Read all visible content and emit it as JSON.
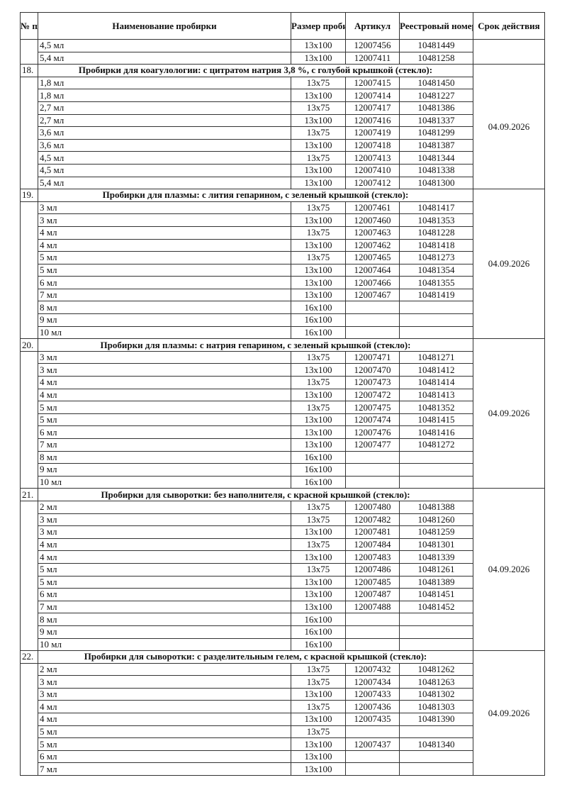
{
  "headers": {
    "num": "№ п/п",
    "name": "Наименование пробирки",
    "size": "Размер пробирки",
    "article": "Артикул",
    "registry": "Реестровый номер",
    "validity": "Срок действия"
  },
  "groups": [
    {
      "number": "",
      "title": "",
      "date": "",
      "items": [
        {
          "name": "4,5 мл",
          "size": "13x100",
          "article": "12007456",
          "registry": "10481449"
        },
        {
          "name": "5,4 мл",
          "size": "13x100",
          "article": "12007411",
          "registry": "10481258"
        }
      ]
    },
    {
      "number": "18.",
      "title": "Пробирки для коагулологии: с цитратом натрия 3,8 %, с голубой крышкой (стекло):",
      "date": "04.09.2026",
      "items": [
        {
          "name": "1,8 мл",
          "size": "13x75",
          "article": "12007415",
          "registry": "10481450"
        },
        {
          "name": "1,8 мл",
          "size": "13x100",
          "article": "12007414",
          "registry": "10481227"
        },
        {
          "name": "2,7 мл",
          "size": "13x75",
          "article": "12007417",
          "registry": "10481386"
        },
        {
          "name": "2,7 мл",
          "size": "13x100",
          "article": "12007416",
          "registry": "10481337"
        },
        {
          "name": "3,6 мл",
          "size": "13x75",
          "article": "12007419",
          "registry": "10481299"
        },
        {
          "name": "3,6 мл",
          "size": "13x100",
          "article": "12007418",
          "registry": "10481387"
        },
        {
          "name": "4,5 мл",
          "size": "13x75",
          "article": "12007413",
          "registry": "10481344"
        },
        {
          "name": "4,5 мл",
          "size": "13x100",
          "article": "12007410",
          "registry": "10481338"
        },
        {
          "name": "5,4 мл",
          "size": "13x100",
          "article": "12007412",
          "registry": "10481300"
        }
      ]
    },
    {
      "number": "19.",
      "title": "Пробирки для плазмы: с лития гепарином, с зеленый крышкой (стекло):",
      "date": "04.09.2026",
      "items": [
        {
          "name": "3 мл",
          "size": "13x75",
          "article": "12007461",
          "registry": "10481417"
        },
        {
          "name": "3 мл",
          "size": "13x100",
          "article": "12007460",
          "registry": "10481353"
        },
        {
          "name": "4 мл",
          "size": "13x75",
          "article": "12007463",
          "registry": "10481228"
        },
        {
          "name": "4 мл",
          "size": "13x100",
          "article": "12007462",
          "registry": "10481418"
        },
        {
          "name": "5 мл",
          "size": "13x75",
          "article": "12007465",
          "registry": "10481273"
        },
        {
          "name": "5 мл",
          "size": "13x100",
          "article": "12007464",
          "registry": "10481354"
        },
        {
          "name": "6 мл",
          "size": "13x100",
          "article": "12007466",
          "registry": "10481355"
        },
        {
          "name": "7 мл",
          "size": "13x100",
          "article": "12007467",
          "registry": "10481419"
        },
        {
          "name": "8 мл",
          "size": "16x100",
          "article": "",
          "registry": ""
        },
        {
          "name": "9 мл",
          "size": "16x100",
          "article": "",
          "registry": ""
        },
        {
          "name": "10 мл",
          "size": "16x100",
          "article": "",
          "registry": ""
        }
      ]
    },
    {
      "number": "20.",
      "title": "Пробирки для плазмы: с натрия гепарином, с зеленый крышкой (стекло):",
      "date": "04.09.2026",
      "items": [
        {
          "name": "3 мл",
          "size": "13x75",
          "article": "12007471",
          "registry": "10481271"
        },
        {
          "name": "3 мл",
          "size": "13x100",
          "article": "12007470",
          "registry": "10481412"
        },
        {
          "name": "4 мл",
          "size": "13x75",
          "article": "12007473",
          "registry": "10481414"
        },
        {
          "name": "4 мл",
          "size": "13x100",
          "article": "12007472",
          "registry": "10481413"
        },
        {
          "name": "5 мл",
          "size": "13x75",
          "article": "12007475",
          "registry": "10481352"
        },
        {
          "name": "5 мл",
          "size": "13x100",
          "article": "12007474",
          "registry": "10481415"
        },
        {
          "name": "6 мл",
          "size": "13x100",
          "article": "12007476",
          "registry": "10481416"
        },
        {
          "name": "7 мл",
          "size": "13x100",
          "article": "12007477",
          "registry": "10481272"
        },
        {
          "name": "8 мл",
          "size": "16x100",
          "article": "",
          "registry": ""
        },
        {
          "name": "9 мл",
          "size": "16x100",
          "article": "",
          "registry": ""
        },
        {
          "name": "10 мл",
          "size": "16x100",
          "article": "",
          "registry": ""
        }
      ]
    },
    {
      "number": "21.",
      "title": "Пробирки для сыворотки: без наполнителя, с красной крышкой (стекло):",
      "date": "04.09.2026",
      "items": [
        {
          "name": "2 мл",
          "size": "13x75",
          "article": "12007480",
          "registry": "10481388"
        },
        {
          "name": "3 мл",
          "size": "13x75",
          "article": "12007482",
          "registry": "10481260"
        },
        {
          "name": "3 мл",
          "size": "13x100",
          "article": "12007481",
          "registry": "10481259"
        },
        {
          "name": "4 мл",
          "size": "13x75",
          "article": "12007484",
          "registry": "10481301"
        },
        {
          "name": "4 мл",
          "size": "13x100",
          "article": "12007483",
          "registry": "10481339"
        },
        {
          "name": "5 мл",
          "size": "13x75",
          "article": "12007486",
          "registry": "10481261"
        },
        {
          "name": "5 мл",
          "size": "13x100",
          "article": "12007485",
          "registry": "10481389"
        },
        {
          "name": "6 мл",
          "size": "13x100",
          "article": "12007487",
          "registry": "10481451"
        },
        {
          "name": "7 мл",
          "size": "13x100",
          "article": "12007488",
          "registry": "10481452"
        },
        {
          "name": "8 мл",
          "size": "16x100",
          "article": "",
          "registry": ""
        },
        {
          "name": "9 мл",
          "size": "16x100",
          "article": "",
          "registry": ""
        },
        {
          "name": "10 мл",
          "size": "16x100",
          "article": "",
          "registry": ""
        }
      ]
    },
    {
      "number": "22.",
      "title": "Пробирки для сыворотки: с разделительным гелем, с красной крышкой (стекло):",
      "date": "04.09.2026",
      "items": [
        {
          "name": "2 мл",
          "size": "13x75",
          "article": "12007432",
          "registry": "10481262"
        },
        {
          "name": "3 мл",
          "size": "13x75",
          "article": "12007434",
          "registry": "10481263"
        },
        {
          "name": "3 мл",
          "size": "13x100",
          "article": "12007433",
          "registry": "10481302"
        },
        {
          "name": "4 мл",
          "size": "13x75",
          "article": "12007436",
          "registry": "10481303"
        },
        {
          "name": "4 мл",
          "size": "13x100",
          "article": "12007435",
          "registry": "10481390"
        },
        {
          "name": "5 мл",
          "size": "13x75",
          "article": "",
          "registry": ""
        },
        {
          "name": "5 мл",
          "size": "13x100",
          "article": "12007437",
          "registry": "10481340"
        },
        {
          "name": "6 мл",
          "size": "13x100",
          "article": "",
          "registry": ""
        },
        {
          "name": "7 мл",
          "size": "13x100",
          "article": "",
          "registry": ""
        }
      ]
    }
  ]
}
